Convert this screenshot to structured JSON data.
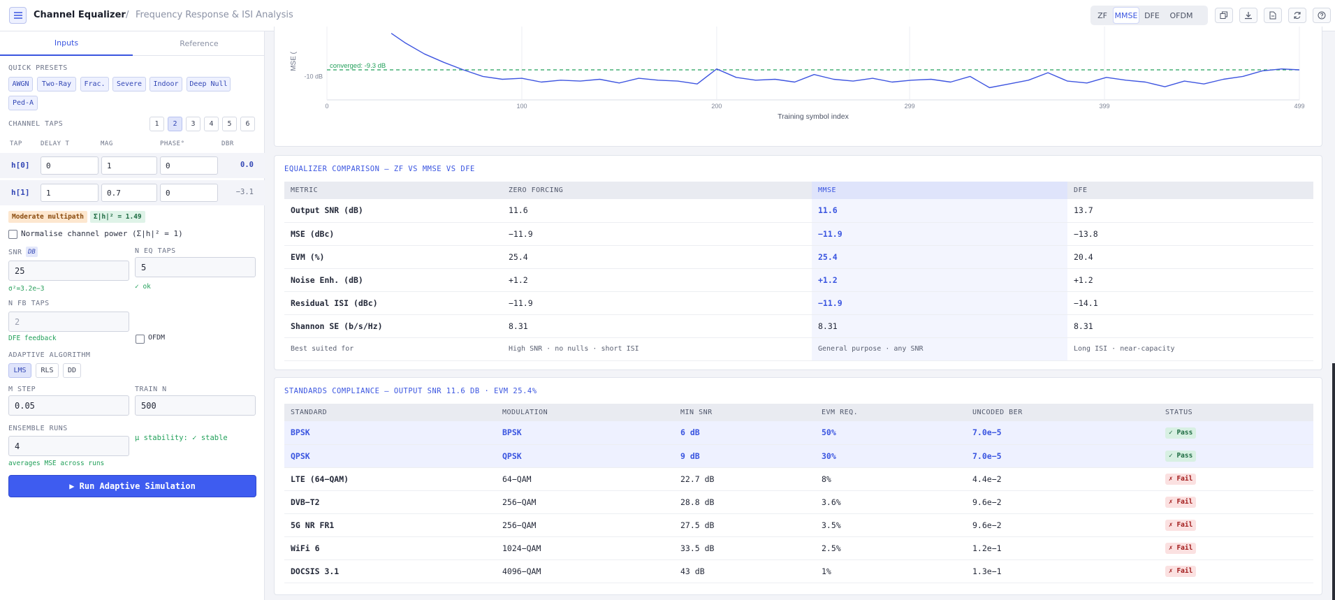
{
  "app": {
    "title": "Channel Equalizer",
    "sep": "/",
    "subtitle": "Frequency Response & ISI Analysis"
  },
  "modes": [
    "ZF",
    "MMSE",
    "DFE",
    "OFDM"
  ],
  "active_mode": "MMSE",
  "toolbar_icons": [
    "copy-icon",
    "download-icon",
    "file-icon",
    "refresh-icon",
    "help-icon"
  ],
  "sidebar": {
    "tabs": [
      "Inputs",
      "Reference"
    ],
    "presets_label": "QUICK PRESETS",
    "presets": [
      "AWGN",
      "Two-Ray",
      "Frac.",
      "Severe",
      "Indoor",
      "Deep Null",
      "Ped-A"
    ],
    "taps_label": "CHANNEL TAPS",
    "tap_counts": [
      "1",
      "2",
      "3",
      "4",
      "5",
      "6"
    ],
    "active_tap_count": "2",
    "cols": [
      "TAP",
      "DELAY T",
      "MAG",
      "PHASE°",
      "DBR"
    ],
    "taps": [
      {
        "name": "h[0]",
        "delay": "0",
        "mag": "1",
        "phase": "0",
        "dbr": "0.0"
      },
      {
        "name": "h[1]",
        "delay": "1",
        "mag": "0.7",
        "phase": "0",
        "dbr": "−3.1"
      }
    ],
    "multipath_tag": "Moderate multipath",
    "power_tag": "Σ|h|² = 1.49",
    "normalise_label": "Normalise channel power (Σ|h|² = 1)",
    "snr_label": "SNR",
    "snr_unit": "DB",
    "snr_value": "25",
    "snr_hint": "σ²=3.2e−3",
    "neq_label": "N EQ TAPS",
    "neq_value": "5",
    "neq_hint": "✓ ok",
    "nfb_label": "N FB TAPS",
    "nfb_value": "2",
    "nfb_hint": "DFE feedback",
    "ofdm_label": "OFDM",
    "algo_label": "ADAPTIVE ALGORITHM",
    "algos": [
      "LMS",
      "RLS",
      "DD"
    ],
    "active_algo": "LMS",
    "mu_label": "M STEP",
    "mu_value": "0.05",
    "train_label": "TRAIN N",
    "train_value": "500",
    "ensemble_label": "ENSEMBLE RUNS",
    "ensemble_value": "4",
    "stability": "μ stability: ✓ stable",
    "ensemble_hint": "averages MSE across runs",
    "run_label": "▶ Run Adaptive Simulation"
  },
  "chart_data": {
    "type": "line",
    "ylabel": "MSE (",
    "xlabel": "Training symbol index",
    "x_ticks": [
      "0",
      "100",
      "200",
      "299",
      "399",
      "499"
    ],
    "y_ticks": [
      "-10 dB"
    ],
    "annotation": "converged: -9.3 dB",
    "converged_db": -9.3,
    "xlim": [
      0,
      499
    ],
    "series": [
      {
        "x": [
          33,
          40,
          50,
          60,
          70,
          80,
          90,
          100,
          110,
          120,
          130,
          140,
          150,
          160,
          170,
          180,
          190,
          200,
          210,
          220,
          230,
          240,
          250,
          260,
          270,
          280,
          290,
          300,
          310,
          320,
          330,
          340,
          350,
          360,
          370,
          380,
          390,
          400,
          410,
          420,
          430,
          440,
          450,
          460,
          470,
          480,
          490,
          499
        ],
        "y": [
          -5.4,
          -6.4,
          -7.6,
          -8.5,
          -9.3,
          -10.0,
          -10.3,
          -10.2,
          -10.6,
          -10.4,
          -10.5,
          -10.3,
          -10.7,
          -10.2,
          -10.4,
          -10.5,
          -10.8,
          -9.2,
          -10.1,
          -10.4,
          -10.3,
          -10.6,
          -9.8,
          -10.3,
          -10.5,
          -10.2,
          -10.6,
          -10.4,
          -10.3,
          -10.6,
          -10.0,
          -11.2,
          -10.8,
          -10.4,
          -9.6,
          -10.5,
          -10.7,
          -10.1,
          -10.4,
          -10.6,
          -11.1,
          -10.5,
          -10.8,
          -10.3,
          -10.0,
          -9.4,
          -9.2,
          -9.3
        ]
      }
    ]
  },
  "comparison": {
    "title": "EQUALIZER COMPARISON — ZF VS MMSE VS DFE",
    "headers": [
      "METRIC",
      "ZERO FORCING",
      "MMSE",
      "DFE"
    ],
    "rows": [
      [
        "Output SNR (dB)",
        "11.6",
        "11.6",
        "13.7"
      ],
      [
        "MSE (dBc)",
        "−11.9",
        "−11.9",
        "−13.8"
      ],
      [
        "EVM (%)",
        "25.4",
        "25.4",
        "20.4"
      ],
      [
        "Noise Enh. (dB)",
        "+1.2",
        "+1.2",
        "+1.2"
      ],
      [
        "Residual ISI (dBc)",
        "−11.9",
        "−11.9",
        "−14.1"
      ],
      [
        "Shannon SE (b/s/Hz)",
        "8.31",
        "8.31",
        "8.31"
      ]
    ],
    "best": [
      "Best suited for",
      "High SNR · no nulls · short ISI",
      "General purpose · any SNR",
      "Long ISI · near-capacity"
    ]
  },
  "compliance": {
    "title": "STANDARDS COMPLIANCE — OUTPUT SNR 11.6 DB · EVM 25.4%",
    "headers": [
      "STANDARD",
      "MODULATION",
      "MIN SNR",
      "EVM REQ.",
      "UNCODED BER",
      "STATUS"
    ],
    "rows": [
      [
        "BPSK",
        "BPSK",
        "6 dB",
        "50%",
        "7.0e−5",
        "✓ Pass"
      ],
      [
        "QPSK",
        "QPSK",
        "9 dB",
        "30%",
        "7.0e−5",
        "✓ Pass"
      ],
      [
        "LTE (64−QAM)",
        "64−QAM",
        "22.7 dB",
        "8%",
        "4.4e−2",
        "✗ Fail"
      ],
      [
        "DVB−T2",
        "256−QAM",
        "28.8 dB",
        "3.6%",
        "9.6e−2",
        "✗ Fail"
      ],
      [
        "5G NR FR1",
        "256−QAM",
        "27.5 dB",
        "3.5%",
        "9.6e−2",
        "✗ Fail"
      ],
      [
        "WiFi 6",
        "1024−QAM",
        "33.5 dB",
        "2.5%",
        "1.2e−1",
        "✗ Fail"
      ],
      [
        "DOCSIS 3.1",
        "4096−QAM",
        "43 dB",
        "1%",
        "1.3e−1",
        "✗ Fail"
      ]
    ]
  }
}
